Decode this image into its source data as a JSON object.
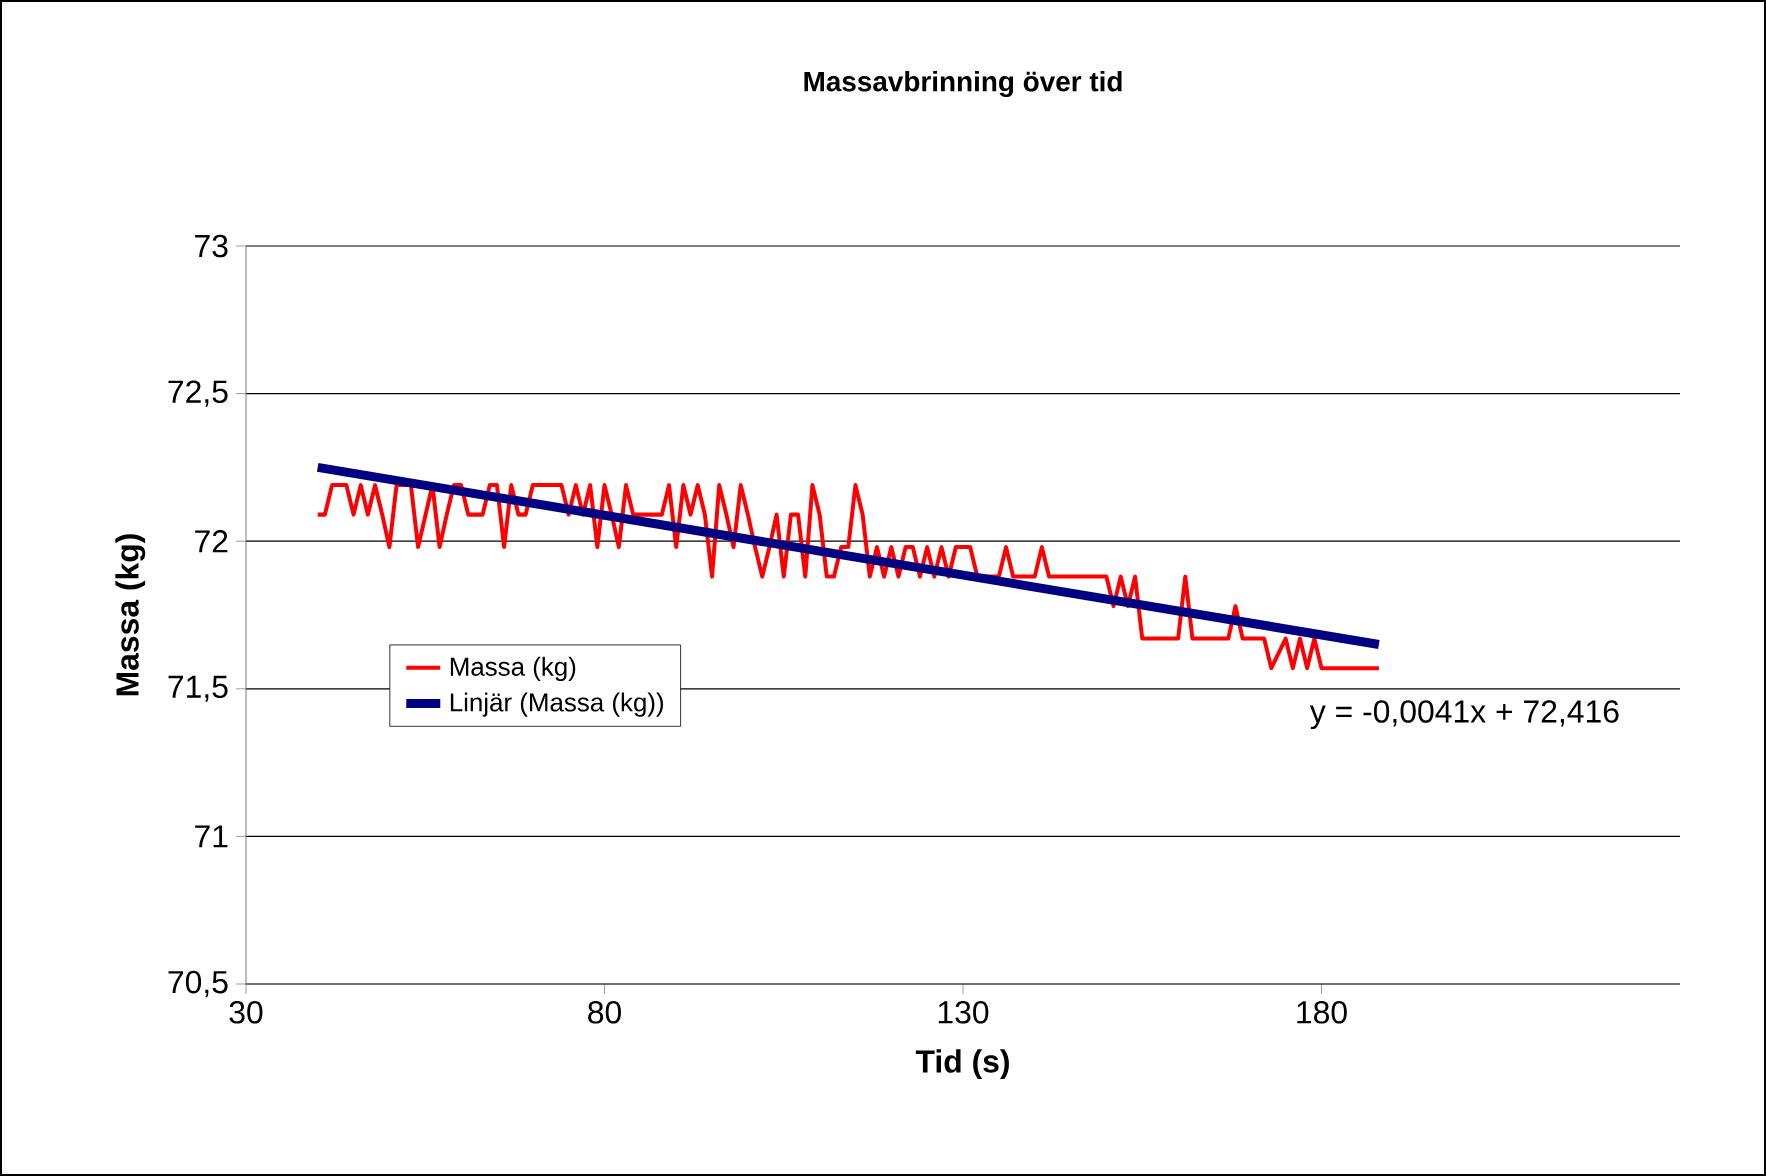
{
  "chart_data": {
    "type": "line",
    "title": "Massavbrinning över tid",
    "xlabel": "Tid (s)",
    "ylabel": "Massa (kg)",
    "xlim": [
      30,
      230
    ],
    "xticks": [
      30,
      80,
      130,
      180
    ],
    "ylim": [
      70.5,
      73
    ],
    "yticks": [
      {
        "value": 70.5,
        "label": "70,5"
      },
      {
        "value": 71,
        "label": "71"
      },
      {
        "value": 71.5,
        "label": "71,5"
      },
      {
        "value": 72,
        "label": "72"
      },
      {
        "value": 72.5,
        "label": "72,5"
      },
      {
        "value": 73,
        "label": "73"
      }
    ],
    "grid": "y",
    "legend": "left",
    "marker": "none",
    "series": [
      {
        "name": "Massa (kg)",
        "color": "#ff0000",
        "x": [
          40,
          41,
          42,
          44,
          45,
          46,
          47,
          48,
          49,
          50,
          51,
          53,
          54,
          56,
          57,
          58,
          59,
          60,
          61,
          63,
          64,
          65,
          66,
          67,
          68,
          69,
          70,
          74,
          75,
          76,
          77,
          78,
          79,
          80,
          81,
          82,
          83,
          84,
          88,
          89,
          90,
          91,
          92,
          93,
          94,
          95,
          96,
          97,
          98,
          99,
          100,
          101,
          102,
          103,
          104,
          105,
          106,
          107,
          108,
          109,
          110,
          111,
          112,
          113,
          114,
          115,
          116,
          117,
          118,
          119,
          120,
          121,
          122,
          123,
          124,
          125,
          126,
          127,
          128,
          129,
          131,
          132,
          135,
          136,
          137,
          140,
          141,
          142,
          150,
          151,
          152,
          153,
          154,
          155,
          160,
          161,
          162,
          167,
          168,
          169,
          172,
          173,
          175,
          176,
          177,
          178,
          179,
          180,
          188
        ],
        "values": [
          72.09,
          72.09,
          72.19,
          72.19,
          72.09,
          72.19,
          72.09,
          72.19,
          72.09,
          71.98,
          72.19,
          72.19,
          71.98,
          72.19,
          71.98,
          72.09,
          72.19,
          72.19,
          72.09,
          72.09,
          72.19,
          72.19,
          71.98,
          72.19,
          72.09,
          72.09,
          72.19,
          72.19,
          72.09,
          72.19,
          72.09,
          72.19,
          71.98,
          72.19,
          72.09,
          71.98,
          72.19,
          72.09,
          72.09,
          72.19,
          71.98,
          72.19,
          72.09,
          72.19,
          72.09,
          71.88,
          72.19,
          72.09,
          71.98,
          72.19,
          72.09,
          71.98,
          71.88,
          71.98,
          72.09,
          71.88,
          72.09,
          72.09,
          71.88,
          72.19,
          72.09,
          71.88,
          71.88,
          71.98,
          71.98,
          72.19,
          72.09,
          71.88,
          71.98,
          71.88,
          71.98,
          71.88,
          71.98,
          71.98,
          71.88,
          71.98,
          71.88,
          71.98,
          71.88,
          71.98,
          71.98,
          71.88,
          71.88,
          71.98,
          71.88,
          71.88,
          71.98,
          71.88,
          71.88,
          71.78,
          71.88,
          71.78,
          71.88,
          71.67,
          71.67,
          71.88,
          71.67,
          71.67,
          71.78,
          71.67,
          71.67,
          71.57,
          71.67,
          71.57,
          71.67,
          71.57,
          71.67,
          71.57,
          71.57
        ]
      },
      {
        "name": "Linjär (Massa (kg))",
        "color": "#000080",
        "x": [
          40,
          188
        ],
        "values": [
          72.25,
          71.65
        ]
      }
    ],
    "annotations": [
      "y = -0,0041x + 72,416"
    ]
  }
}
